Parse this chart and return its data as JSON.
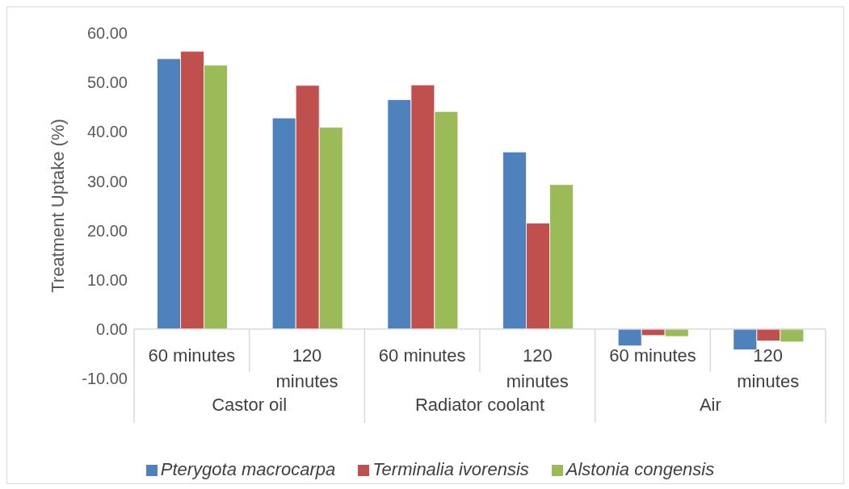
{
  "chart_data": {
    "type": "bar",
    "ylabel": "Treatment Uptake (%)",
    "categories": [
      "60 minutes",
      "120 minutes",
      "60 minutes",
      "120 minutes",
      "60 minutes",
      "120 minutes"
    ],
    "annotations": [
      "Castor oil",
      "Radiator coolant",
      "Air"
    ],
    "series": [
      {
        "name": "Pterygota macrocarpa",
        "color": "#4f81bd",
        "values": [
          54.8,
          42.8,
          46.5,
          35.9,
          -3.4,
          -4.2
        ]
      },
      {
        "name": "Terminalia ivorensis",
        "color": "#c0504d",
        "values": [
          56.3,
          49.4,
          49.5,
          21.5,
          -1.3,
          -2.4
        ]
      },
      {
        "name": "Alstonia congensis",
        "color": "#9bbb59",
        "values": [
          53.5,
          40.9,
          44.1,
          29.3,
          -1.5,
          -2.6
        ]
      }
    ],
    "ylim": [
      -10,
      60
    ],
    "yticks": [
      {
        "value": -10,
        "label": "-10.00"
      },
      {
        "value": 0,
        "label": "0.00"
      },
      {
        "value": 10,
        "label": "10.00"
      },
      {
        "value": 20,
        "label": "20.00"
      },
      {
        "value": 30,
        "label": "30.00"
      },
      {
        "value": 40,
        "label": "40.00"
      },
      {
        "value": 50,
        "label": "50.00"
      },
      {
        "value": 60,
        "label": "60.00"
      }
    ],
    "grid": false,
    "legend": "bottom"
  }
}
